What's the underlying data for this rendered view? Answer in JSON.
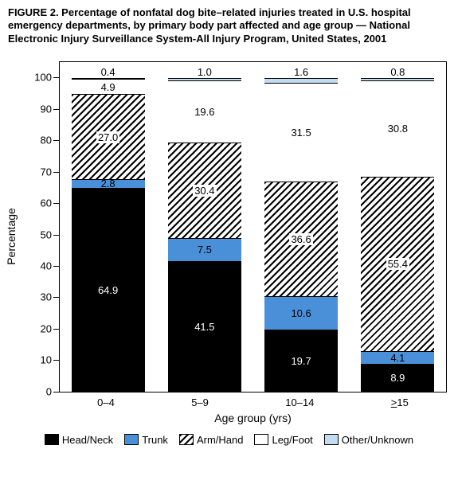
{
  "caption": "FIGURE 2. Percentage of nonfatal dog bite–related injuries treated in U.S. hospital emergency departments, by primary body part affected and age group — National Electronic Injury Surveillance System-All Injury Program, United States, 2001",
  "chart": {
    "type": "stacked-bar",
    "ylabel": "Percentage",
    "xlabel": "Age group (yrs)",
    "ylim": [
      0,
      105
    ],
    "ytick_step": 10,
    "yticks": [
      0,
      10,
      20,
      30,
      40,
      50,
      60,
      70,
      80,
      90,
      100
    ],
    "categories": [
      "0–4",
      "5–9",
      "10–14",
      "≥15"
    ],
    "series": [
      {
        "name": "Head/Neck",
        "fill": "black",
        "color": "#000000"
      },
      {
        "name": "Trunk",
        "fill": "blue",
        "color": "#4a90d9"
      },
      {
        "name": "Arm/Hand",
        "fill": "hatch",
        "color": "#ffffff"
      },
      {
        "name": "Leg/Foot",
        "fill": "white",
        "color": "#ffffff"
      },
      {
        "name": "Other/Unknown",
        "fill": "light",
        "color": "#c3dcf2"
      }
    ],
    "data": [
      {
        "head_neck": 64.9,
        "trunk": 2.8,
        "arm_hand": 27.0,
        "leg_foot": 4.9,
        "other": 0.4
      },
      {
        "head_neck": 41.5,
        "trunk": 7.5,
        "arm_hand": 30.4,
        "leg_foot": 19.6,
        "other": 1.0
      },
      {
        "head_neck": 19.7,
        "trunk": 10.6,
        "arm_hand": 36.6,
        "leg_foot": 31.5,
        "other": 1.6
      },
      {
        "head_neck": 8.9,
        "trunk": 4.1,
        "arm_hand": 55.4,
        "leg_foot": 30.8,
        "other": 0.8
      }
    ],
    "background_color": "#ffffff",
    "axis_color": "#000000",
    "label_fontsize": 13,
    "title_fontsize": 13
  }
}
